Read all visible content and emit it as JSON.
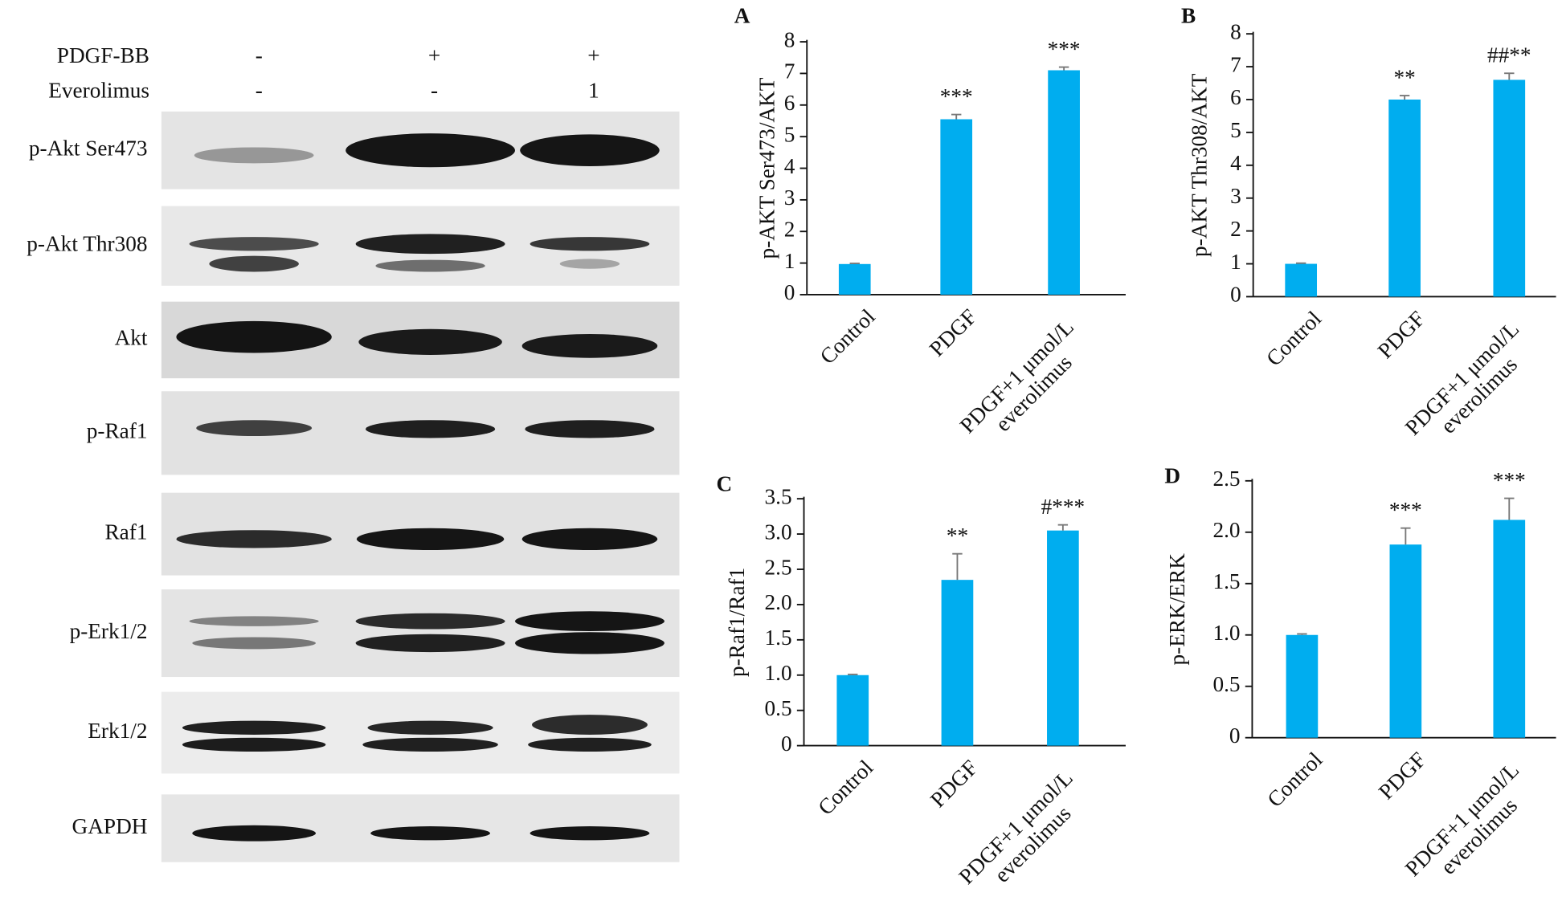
{
  "blot": {
    "conditions": [
      {
        "label": "PDGF-BB",
        "lanes": [
          "-",
          "+",
          "+"
        ]
      },
      {
        "label": "Everolimus",
        "lanes": [
          "-",
          "-",
          "1"
        ]
      }
    ],
    "rows": [
      "p-Akt Ser473",
      "p-Akt Thr308",
      "Akt",
      "p-Raf1",
      "Raf1",
      "p-Erk1/2",
      "Erk1/2",
      "GAPDH"
    ]
  },
  "chart_data": [
    {
      "type": "bar",
      "panel_label": "A",
      "y_label": "p-AKT Ser473/AKT",
      "categories": [
        "Control",
        "PDGF",
        "PDGF+1 μmol/L everolimus"
      ],
      "values": [
        0.97,
        5.55,
        7.1
      ],
      "errors": [
        0.02,
        0.15,
        0.1
      ],
      "color": "#00adef",
      "annotations": [
        null,
        "***",
        "***"
      ],
      "ylim": [
        0,
        8
      ],
      "yticks": [
        0,
        1,
        2,
        3,
        4,
        5,
        6,
        7,
        8
      ]
    },
    {
      "type": "bar",
      "panel_label": "B",
      "y_label": "p-AKT Thr308/AKT",
      "categories": [
        "Control",
        "PDGF",
        "PDGF+1 μmol/L everolimus"
      ],
      "values": [
        1.0,
        6.0,
        6.6
      ],
      "errors": [
        0.02,
        0.12,
        0.2
      ],
      "color": "#00adef",
      "annotations": [
        null,
        "**",
        "##**"
      ],
      "ylim": [
        0,
        8
      ],
      "yticks": [
        0,
        1,
        2,
        3,
        4,
        5,
        6,
        7,
        8
      ]
    },
    {
      "type": "bar",
      "panel_label": "C",
      "y_label": "p-Raf1/Raf1",
      "categories": [
        "Control",
        "PDGF",
        "PDGF+1 μmol/L everolimus"
      ],
      "values": [
        1.0,
        2.35,
        3.05
      ],
      "errors": [
        0.01,
        0.37,
        0.08
      ],
      "color": "#00adef",
      "annotations": [
        null,
        "**",
        "#***"
      ],
      "ylim": [
        0,
        3.5
      ],
      "yticks": [
        0,
        0.5,
        {
          "value": 1,
          "label": "1.0"
        },
        1.5,
        {
          "value": 2,
          "label": "2.0"
        },
        2.5,
        {
          "value": 3,
          "label": "3.0"
        },
        3.5
      ]
    },
    {
      "type": "bar",
      "panel_label": "D",
      "y_label": "p-ERK/ERK",
      "categories": [
        "Control",
        "PDGF",
        "PDGF+1 μmol/L everolimus"
      ],
      "values": [
        1.0,
        1.88,
        2.12
      ],
      "errors": [
        0.01,
        0.16,
        0.21
      ],
      "color": "#00adef",
      "annotations": [
        null,
        "***",
        "***"
      ],
      "ylim": [
        0,
        2.5
      ],
      "yticks": [
        0,
        0.5,
        {
          "value": 1,
          "label": "1.0"
        },
        1.5,
        {
          "value": 2,
          "label": "2.0"
        },
        2.5
      ]
    }
  ]
}
